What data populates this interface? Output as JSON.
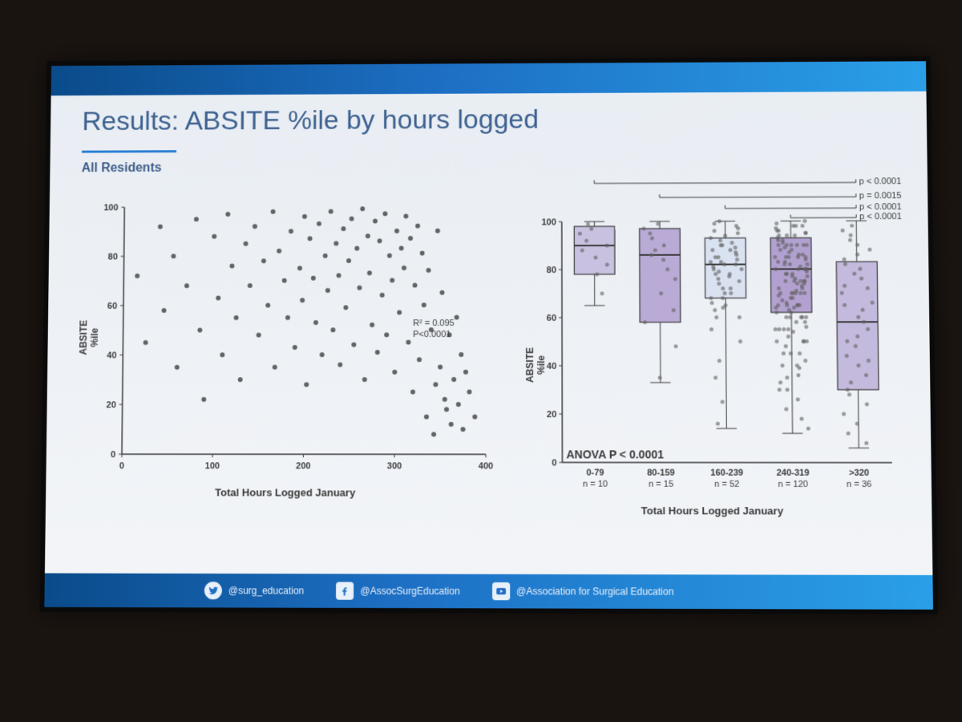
{
  "slide": {
    "background_gradient": [
      "#e8edf3",
      "#f3f5f8"
    ],
    "header_gradient": [
      "#0a4b8a",
      "#1d6fc4",
      "#2a9fe8"
    ],
    "title": "Results: ABSITE %ile by hours logged",
    "title_color": "#3d6190",
    "title_fontsize": 34,
    "subtitle": "All Residents",
    "subtitle_color": "#3d5d87",
    "accent_color": "#2a7fd4"
  },
  "scatter": {
    "type": "scatter",
    "xlabel": "Total Hours Logged January",
    "ylabel": "ABSITE\n%ile",
    "xlim": [
      0,
      400
    ],
    "ylim": [
      0,
      100
    ],
    "xtick_step": 100,
    "ytick_step": 20,
    "marker_color": "#4a4a4a",
    "marker_size": 3,
    "annotation_r2": "R² = 0.095",
    "annotation_p": "P<0.0001",
    "annotation_pos_pct": [
      80,
      55
    ],
    "points": [
      [
        15,
        72
      ],
      [
        25,
        45
      ],
      [
        40,
        92
      ],
      [
        45,
        58
      ],
      [
        55,
        80
      ],
      [
        60,
        35
      ],
      [
        70,
        68
      ],
      [
        80,
        95
      ],
      [
        85,
        50
      ],
      [
        90,
        22
      ],
      [
        100,
        88
      ],
      [
        105,
        63
      ],
      [
        110,
        40
      ],
      [
        115,
        97
      ],
      [
        120,
        76
      ],
      [
        125,
        55
      ],
      [
        130,
        30
      ],
      [
        135,
        85
      ],
      [
        140,
        68
      ],
      [
        145,
        92
      ],
      [
        150,
        48
      ],
      [
        155,
        78
      ],
      [
        160,
        60
      ],
      [
        165,
        98
      ],
      [
        168,
        35
      ],
      [
        172,
        82
      ],
      [
        178,
        70
      ],
      [
        182,
        55
      ],
      [
        185,
        90
      ],
      [
        190,
        43
      ],
      [
        195,
        75
      ],
      [
        198,
        62
      ],
      [
        200,
        96
      ],
      [
        203,
        28
      ],
      [
        206,
        87
      ],
      [
        210,
        71
      ],
      [
        213,
        53
      ],
      [
        216,
        93
      ],
      [
        220,
        40
      ],
      [
        223,
        80
      ],
      [
        226,
        66
      ],
      [
        229,
        98
      ],
      [
        232,
        50
      ],
      [
        235,
        85
      ],
      [
        238,
        72
      ],
      [
        240,
        36
      ],
      [
        243,
        91
      ],
      [
        246,
        59
      ],
      [
        249,
        78
      ],
      [
        252,
        95
      ],
      [
        255,
        44
      ],
      [
        258,
        83
      ],
      [
        261,
        67
      ],
      [
        264,
        99
      ],
      [
        267,
        30
      ],
      [
        270,
        88
      ],
      [
        272,
        73
      ],
      [
        275,
        52
      ],
      [
        278,
        94
      ],
      [
        281,
        41
      ],
      [
        283,
        86
      ],
      [
        286,
        64
      ],
      [
        289,
        97
      ],
      [
        291,
        48
      ],
      [
        294,
        80
      ],
      [
        297,
        70
      ],
      [
        300,
        33
      ],
      [
        302,
        90
      ],
      [
        305,
        57
      ],
      [
        307,
        83
      ],
      [
        310,
        75
      ],
      [
        312,
        96
      ],
      [
        315,
        45
      ],
      [
        317,
        87
      ],
      [
        320,
        25
      ],
      [
        322,
        68
      ],
      [
        325,
        92
      ],
      [
        327,
        38
      ],
      [
        330,
        81
      ],
      [
        332,
        60
      ],
      [
        335,
        15
      ],
      [
        337,
        74
      ],
      [
        340,
        50
      ],
      [
        343,
        8
      ],
      [
        345,
        28
      ],
      [
        347,
        90
      ],
      [
        350,
        35
      ],
      [
        352,
        65
      ],
      [
        355,
        22
      ],
      [
        357,
        18
      ],
      [
        360,
        48
      ],
      [
        362,
        12
      ],
      [
        365,
        30
      ],
      [
        368,
        55
      ],
      [
        370,
        20
      ],
      [
        373,
        40
      ],
      [
        375,
        10
      ],
      [
        378,
        33
      ],
      [
        382,
        25
      ],
      [
        388,
        15
      ]
    ]
  },
  "boxplot": {
    "type": "boxplot",
    "xlabel": "Total Hours Logged January",
    "ylabel": "ABSITE\n%ile",
    "ylim": [
      0,
      100
    ],
    "ytick_step": 20,
    "anova_label": "ANOVA P < 0.0001",
    "box_colors": [
      "#c2b8dc",
      "#b09fd0",
      "#d6dff0",
      "#a893c9",
      "#bcb0d8"
    ],
    "box_border": "#3a3a3a",
    "median_color": "#3a3a3a",
    "jitter_color": "#616161",
    "jitter_size": 2.5,
    "categories": [
      {
        "label": "0-79",
        "n": "n = 10",
        "q1": 78,
        "median": 90,
        "q3": 98,
        "wlo": 65,
        "whi": 100,
        "jitter": [
          70,
          78,
          82,
          85,
          88,
          90,
          92,
          95,
          97,
          99
        ]
      },
      {
        "label": "80-159",
        "n": "n = 15",
        "q1": 58,
        "median": 86,
        "q3": 97,
        "wlo": 33,
        "whi": 100,
        "jitter": [
          35,
          48,
          58,
          63,
          70,
          76,
          80,
          84,
          86,
          88,
          90,
          93,
          95,
          97,
          99
        ]
      },
      {
        "label": "160-239",
        "n": "n = 52",
        "q1": 68,
        "median": 82,
        "q3": 93,
        "wlo": 14,
        "whi": 100,
        "jitter": [
          16,
          25,
          35,
          42,
          50,
          55,
          60,
          63,
          66,
          68,
          70,
          72,
          74,
          76,
          78,
          79,
          80,
          81,
          82,
          83,
          84,
          85,
          86,
          87,
          88,
          89,
          90,
          91,
          92,
          93,
          94,
          95,
          96,
          97,
          98,
          99,
          100,
          78,
          82,
          85,
          70,
          65,
          60,
          90,
          88,
          75,
          80,
          83,
          77,
          72,
          68,
          64
        ]
      },
      {
        "label": "240-319",
        "n": "n = 120",
        "q1": 62,
        "median": 80,
        "q3": 93,
        "wlo": 12,
        "whi": 100,
        "jitter": [
          14,
          18,
          22,
          26,
          30,
          33,
          36,
          39,
          42,
          45,
          48,
          50,
          52,
          54,
          56,
          58,
          60,
          62,
          63,
          64,
          65,
          66,
          67,
          68,
          69,
          70,
          71,
          72,
          73,
          74,
          75,
          76,
          77,
          78,
          79,
          80,
          81,
          82,
          83,
          84,
          85,
          86,
          87,
          88,
          89,
          90,
          91,
          92,
          93,
          94,
          95,
          96,
          97,
          98,
          99,
          100,
          78,
          82,
          85,
          70,
          65,
          60,
          90,
          88,
          75,
          80,
          83,
          77,
          72,
          68,
          64,
          58,
          55,
          62,
          70,
          74,
          78,
          82,
          86,
          90,
          94,
          98,
          50,
          55,
          60,
          65,
          70,
          75,
          80,
          85,
          90,
          95,
          40,
          45,
          50,
          55,
          60,
          65,
          70,
          75,
          80,
          85,
          90,
          30,
          35,
          40,
          45,
          50,
          55,
          60,
          65,
          70,
          75,
          80,
          85,
          90,
          92,
          94,
          96,
          98
        ]
      },
      {
        "label": ">320",
        "n": "n = 36",
        "q1": 30,
        "median": 58,
        "q3": 83,
        "wlo": 6,
        "whi": 100,
        "jitter": [
          8,
          12,
          16,
          20,
          24,
          28,
          30,
          33,
          36,
          40,
          44,
          48,
          52,
          55,
          58,
          60,
          63,
          66,
          70,
          73,
          76,
          78,
          80,
          82,
          84,
          86,
          88,
          90,
          92,
          94,
          96,
          98,
          42,
          50,
          65,
          72
        ]
      }
    ],
    "sig_brackets": [
      {
        "from": 0,
        "to": 4,
        "y": 148,
        "label": "p < 0.0001"
      },
      {
        "from": 1,
        "to": 4,
        "y": 130,
        "label": "p = 0.0015"
      },
      {
        "from": 2,
        "to": 4,
        "y": 116,
        "label": "p < 0.0001"
      },
      {
        "from": 3,
        "to": 4,
        "y": 104,
        "label": "p < 0.0001"
      }
    ]
  },
  "footer": {
    "items": [
      {
        "icon": "bird-icon",
        "handle": "@surg_education"
      },
      {
        "icon": "f-icon",
        "handle": "@AssocSurgEducation"
      },
      {
        "icon": "play-icon",
        "handle": "@Association for Surgical Education"
      }
    ],
    "text_color": "#e8f0fa"
  }
}
